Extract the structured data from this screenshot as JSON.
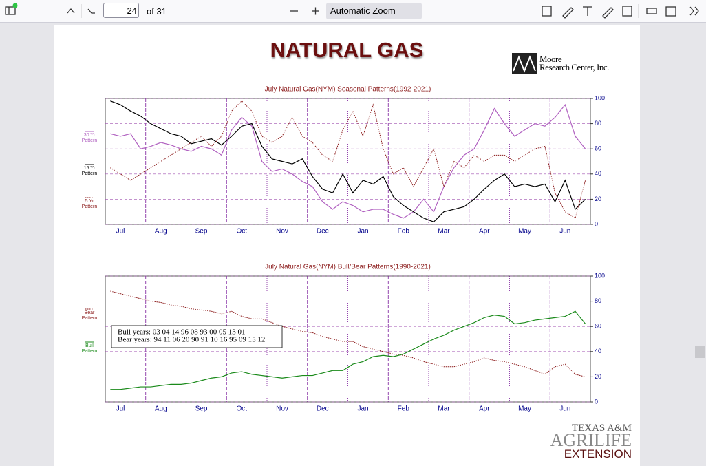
{
  "toolbar": {
    "page_number": "24",
    "page_count": "of 31",
    "zoom": "Automatic Zoom"
  },
  "document": {
    "title": "NATURAL GAS",
    "logo_top": [
      "Moore",
      "Research Center, Inc."
    ],
    "logo_bottom": [
      "TEXAS A&M",
      "AGRILIFE",
      "EXTENSION"
    ]
  },
  "chart_data": [
    {
      "type": "line",
      "title": "July Natural Gas(NYM) Seasonal Patterns(1992-2021)",
      "categories": [
        null,
        "Jul",
        null,
        null,
        null,
        "Aug",
        null,
        null,
        null,
        "Sep",
        null,
        null,
        null,
        "Oct",
        null,
        null,
        null,
        "Nov",
        null,
        null,
        null,
        "Dec",
        null,
        null,
        null,
        "Jan",
        null,
        null,
        null,
        "Feb",
        null,
        null,
        null,
        "Mar",
        null,
        null,
        null,
        "Apr",
        null,
        null,
        null,
        "May",
        null,
        null,
        null,
        "Jun",
        null,
        null
      ],
      "series": [
        {
          "name": "30 Yr Pattern",
          "color": "#b060c0",
          "dash": false,
          "values": [
            72,
            70,
            72,
            60,
            62,
            65,
            63,
            60,
            58,
            62,
            60,
            55,
            75,
            85,
            78,
            50,
            42,
            44,
            40,
            34,
            30,
            18,
            12,
            18,
            15,
            10,
            12,
            12,
            8,
            5,
            10,
            20,
            10,
            30,
            45,
            55,
            60,
            75,
            92,
            80,
            70,
            75,
            80,
            78,
            85,
            95,
            70,
            60
          ]
        },
        {
          "name": "15 Yr Pattern",
          "color": "#000000",
          "dash": false,
          "values": [
            98,
            95,
            90,
            86,
            80,
            76,
            72,
            70,
            64,
            66,
            68,
            63,
            70,
            78,
            80,
            62,
            52,
            50,
            48,
            52,
            38,
            28,
            25,
            40,
            25,
            35,
            32,
            38,
            22,
            15,
            10,
            5,
            2,
            10,
            12,
            14,
            20,
            28,
            35,
            40,
            30,
            32,
            30,
            32,
            18,
            35,
            12,
            20
          ]
        },
        {
          "name": "5 Yr Pattern",
          "color": "#8b1a1a",
          "dash": true,
          "values": [
            45,
            40,
            35,
            40,
            45,
            50,
            55,
            60,
            65,
            70,
            62,
            70,
            90,
            98,
            90,
            70,
            65,
            70,
            85,
            70,
            65,
            55,
            50,
            75,
            90,
            70,
            95,
            60,
            40,
            45,
            30,
            45,
            60,
            30,
            50,
            45,
            55,
            50,
            55,
            55,
            50,
            55,
            60,
            62,
            25,
            10,
            5,
            35
          ]
        }
      ],
      "ylim": [
        0,
        100
      ],
      "yticks": [
        0,
        20,
        40,
        60,
        80,
        100
      ],
      "grid": true
    },
    {
      "type": "line",
      "title": "July Natural Gas(NYM) Bull/Bear Patterns(1990-2021)",
      "categories": [
        null,
        "Jul",
        null,
        null,
        null,
        "Aug",
        null,
        null,
        null,
        "Sep",
        null,
        null,
        null,
        "Oct",
        null,
        null,
        null,
        "Nov",
        null,
        null,
        null,
        "Dec",
        null,
        null,
        null,
        "Jan",
        null,
        null,
        null,
        "Feb",
        null,
        null,
        null,
        "Mar",
        null,
        null,
        null,
        "Apr",
        null,
        null,
        null,
        "May",
        null,
        null,
        null,
        "Jun",
        null,
        null
      ],
      "series": [
        {
          "name": "Bear Pattern",
          "color": "#8b1a1a",
          "dash": true,
          "values": [
            88,
            86,
            84,
            82,
            80,
            79,
            77,
            76,
            74,
            73,
            72,
            70,
            72,
            68,
            66,
            66,
            63,
            60,
            58,
            56,
            55,
            52,
            50,
            48,
            48,
            44,
            42,
            40,
            38,
            37,
            35,
            32,
            30,
            28,
            28,
            30,
            32,
            35,
            33,
            32,
            30,
            28,
            25,
            22,
            28,
            30,
            22,
            20
          ]
        },
        {
          "name": "Bull Pattern",
          "color": "#1a8a1a",
          "dash": false,
          "values": [
            10,
            10,
            11,
            12,
            12,
            13,
            14,
            14,
            15,
            17,
            19,
            20,
            23,
            24,
            22,
            21,
            20,
            19,
            20,
            21,
            21,
            23,
            25,
            25,
            30,
            32,
            36,
            37,
            36,
            38,
            42,
            46,
            50,
            53,
            57,
            60,
            63,
            67,
            69,
            68,
            62,
            63,
            65,
            66,
            67,
            68,
            72,
            62
          ]
        }
      ],
      "annotations": [
        "Bull years: 03 04 14 96 08 93 00 05 13 01",
        "Bear years: 94 11 06 20 90 91 10 16 95 09 15 12"
      ],
      "ylim": [
        0,
        100
      ],
      "yticks": [
        0,
        20,
        40,
        60,
        80,
        100
      ],
      "grid": true
    }
  ]
}
